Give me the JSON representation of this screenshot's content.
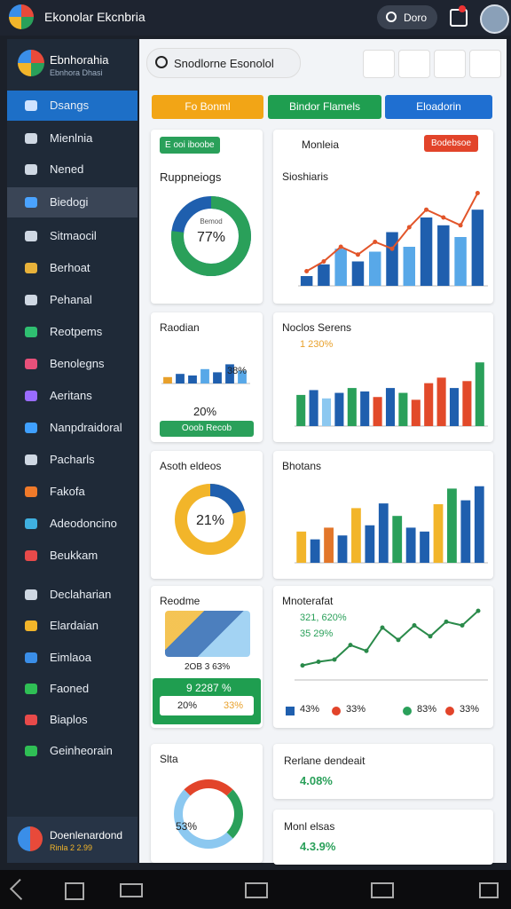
{
  "header": {
    "title": "Ekonolar Ekcnbria",
    "search": "Dorо"
  },
  "sidebar": {
    "brand": "Ebnhorahia",
    "brand_sub": "Ebnhora Dhasi",
    "items": [
      {
        "label": "Dsangs",
        "icon_color": "#cfe3ff"
      },
      {
        "label": "Mienlnia",
        "icon_color": "#cfd8e3"
      },
      {
        "label": "Nened",
        "icon_color": "#cfd8e3"
      },
      {
        "label": "Biedogi",
        "icon_color": "#4aa3ff"
      },
      {
        "label": "Sitmaocil",
        "icon_color": "#cfd8e3"
      },
      {
        "label": "Berhoat",
        "icon_color": "#e8b23a"
      },
      {
        "label": "Pehanal",
        "icon_color": "#cfd8e3"
      },
      {
        "label": "Reotpems",
        "icon_color": "#2fbf71"
      },
      {
        "label": "Benolegns",
        "icon_color": "#e8507a"
      },
      {
        "label": "Aeritans",
        "icon_color": "#9a6cff"
      },
      {
        "label": "Nanpdraidoral",
        "icon_color": "#3fa0ff"
      },
      {
        "label": "Pacharls",
        "icon_color": "#cfd8e3"
      },
      {
        "label": "Fakofa",
        "icon_color": "#f07a2a"
      },
      {
        "label": "Adeodoncino",
        "icon_color": "#3fb0e0"
      },
      {
        "label": "Beukkam",
        "icon_color": "#e84a4a"
      },
      {
        "label": "Declaharian",
        "icon_color": "#cfd8e3"
      },
      {
        "label": "Elardaian",
        "icon_color": "#f2b52a"
      },
      {
        "label": "Eimlaoa",
        "icon_color": "#3a8ee8"
      },
      {
        "label": "Faoned",
        "icon_color": "#2fbf55"
      },
      {
        "label": "Biaplos",
        "icon_color": "#e84a4a"
      },
      {
        "label": "Geinheorain",
        "icon_color": "#2fbf55"
      }
    ],
    "user": {
      "name": "Doenlenardond",
      "sub": "Rinla 2 2.99"
    }
  },
  "search": {
    "placeholder": "Snodlorne Esonolol"
  },
  "buttons": [
    {
      "label": "Fo Bonml",
      "color": "#f2a516"
    },
    {
      "label": "Bindor Flamels",
      "color": "#1f9e50"
    },
    {
      "label": "Eloadorin",
      "color": "#1f6fd1"
    }
  ],
  "cards": {
    "c1": {
      "badge": "E ooi iboobe",
      "title": "Ruppneiogs",
      "donut": {
        "value": 77,
        "label": "77%",
        "caption": "Bemod"
      }
    },
    "c2": {
      "title": "Monleia",
      "button": "Bodebsoe",
      "subtitle": "Sioshiaris",
      "chart": {
        "type": "bar",
        "ylim": [
          0,
          100
        ],
        "values": [
          10,
          22,
          38,
          25,
          35,
          55,
          40,
          70,
          62,
          50,
          78
        ],
        "colors": [
          "#1f5fae",
          "#1f5fae",
          "#58a8e8",
          "#1f5fae",
          "#58a8e8",
          "#1f5fae",
          "#58a8e8",
          "#1f5fae",
          "#1f5fae",
          "#58a8e8",
          "#1f5fae"
        ],
        "line": [
          15,
          25,
          40,
          32,
          45,
          38,
          60,
          78,
          70,
          62,
          95
        ],
        "line_color": "#e2552a"
      }
    },
    "c3": {
      "title": "Raodian",
      "stat1": "38%",
      "stat2": "20%",
      "button": "Ooob Recob",
      "chart": {
        "type": "bar",
        "ylim": [
          0,
          100
        ],
        "values": [
          20,
          30,
          25,
          45,
          35,
          60,
          40
        ],
        "colors": [
          "#e8a02a",
          "#1f5fae",
          "#1f5fae",
          "#58a8e8",
          "#1f5fae",
          "#1f5fae",
          "#58a8e8"
        ]
      }
    },
    "c4": {
      "title": "Noclos Serens",
      "stat": "1 230%",
      "chart": {
        "type": "bar",
        "ylim": [
          0,
          100
        ],
        "values": [
          45,
          52,
          40,
          48,
          55,
          50,
          42,
          55,
          48,
          38,
          62,
          70,
          55,
          65,
          92
        ],
        "colors": [
          "#2aa05a",
          "#1f5fae",
          "#8cc8f0",
          "#1f5fae",
          "#2aa05a",
          "#1f5fae",
          "#e24a2a",
          "#1f5fae",
          "#2aa05a",
          "#e24a2a",
          "#e24a2a",
          "#e24a2a",
          "#1f5fae",
          "#e24a2a",
          "#2aa05a"
        ]
      }
    },
    "c5": {
      "title": "Asoth eldeos",
      "donut": {
        "value": 21,
        "label": "21%"
      }
    },
    "c6": {
      "title": "Bhotans",
      "chart": {
        "type": "bar",
        "ylim": [
          0,
          100
        ],
        "values": [
          40,
          30,
          45,
          35,
          70,
          48,
          76,
          60,
          45,
          40,
          75,
          95,
          80,
          98
        ],
        "colors": [
          "#f2b52a",
          "#1f5fae",
          "#e2762a",
          "#1f5fae",
          "#f2b52a",
          "#1f5fae",
          "#1f5fae",
          "#2aa05a",
          "#1f5fae",
          "#1f5fae",
          "#f2b52a",
          "#2aa05a",
          "#1f5fae",
          "#1f5fae"
        ]
      }
    },
    "c7": {
      "title": "Reodme",
      "stat": "2OB 3 63%",
      "box": "9 2287 %",
      "pill1": "20%",
      "pill2": "33%"
    },
    "c8": {
      "title": "Mnoterafat",
      "stat1": "321, 620%",
      "stat2": "35 29%",
      "chart": {
        "type": "line",
        "ylim": [
          0,
          100
        ],
        "values": [
          20,
          25,
          28,
          48,
          40,
          72,
          55,
          75,
          60,
          80,
          75,
          95
        ],
        "color": "#2a8a4a"
      },
      "legend": [
        {
          "label": "43%",
          "color": "#1f5fae"
        },
        {
          "label": "33%",
          "color": "#e2442a"
        },
        {
          "label": "83%",
          "color": "#2aa05a"
        },
        {
          "label": "33%",
          "color": "#e2442a"
        }
      ]
    },
    "c9": {
      "title": "Slta",
      "gauge": "53%"
    },
    "c10": {
      "title": "Rerlane dendeait",
      "stat": "4.08%"
    },
    "c11": {
      "title": "Monl elsas",
      "stat": "4.3.9%"
    }
  }
}
